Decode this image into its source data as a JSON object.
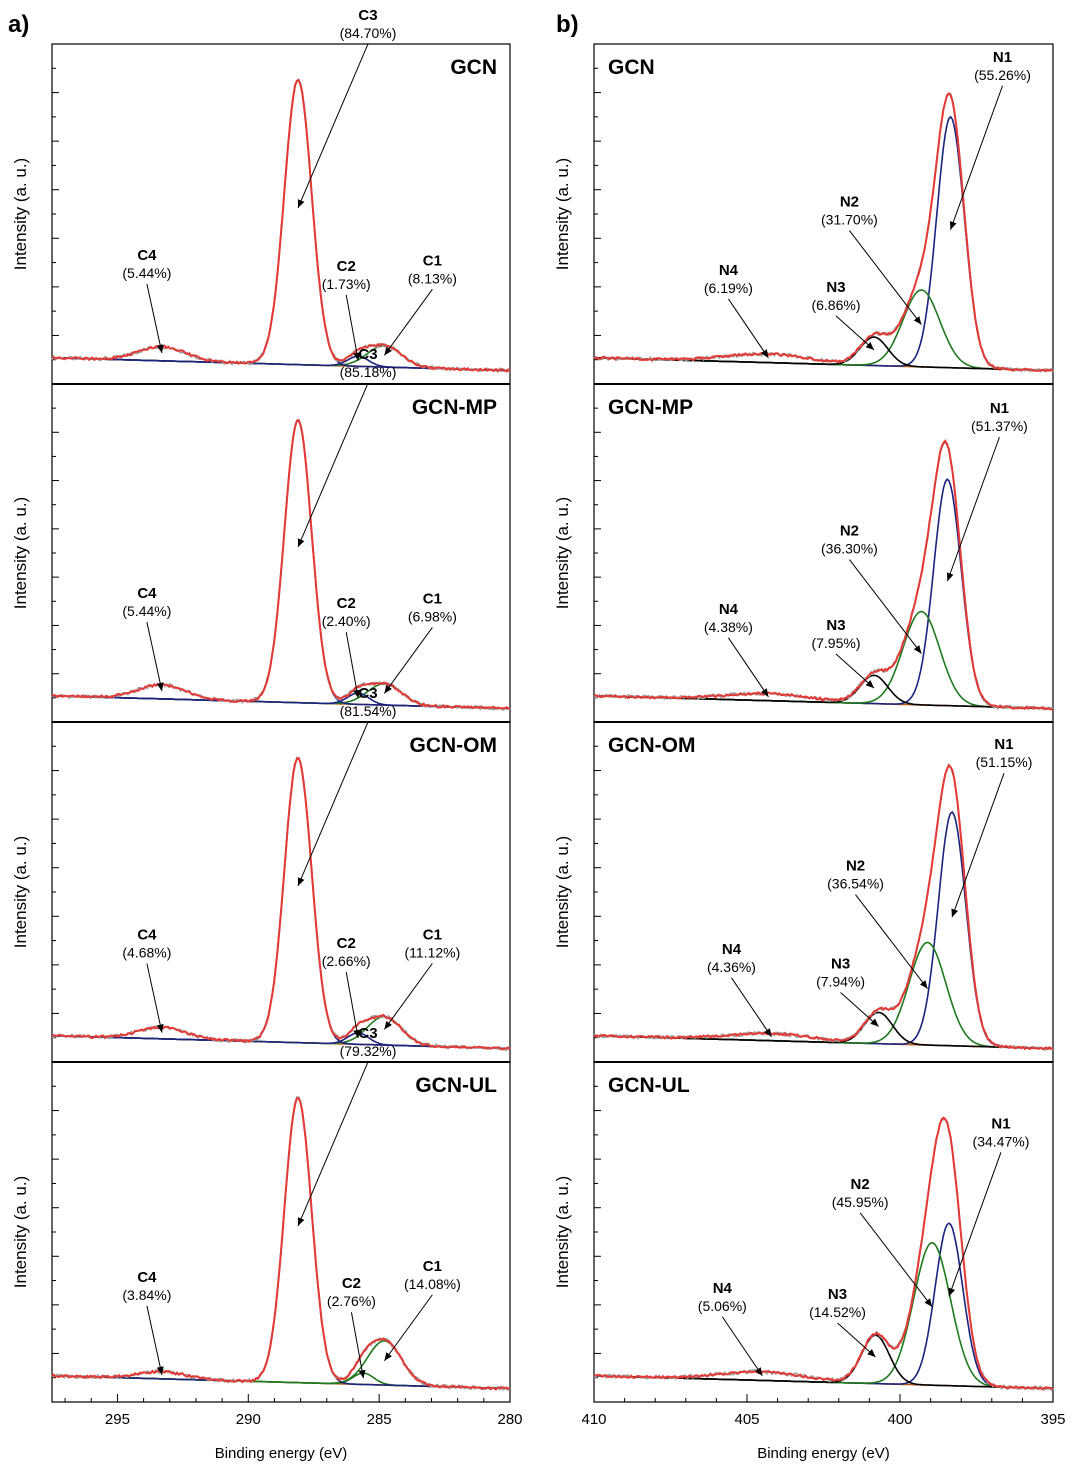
{
  "panels": [
    {
      "letter": "a)",
      "xlabel": "Binding energy (eV)",
      "ylabel": "Intensity (a. u.)",
      "xlim": [
        297.5,
        280
      ],
      "xticks": [
        295,
        290,
        285,
        280
      ],
      "subplots": [
        {
          "title": "GCN",
          "components": [
            {
              "name": "C1",
              "percent": "(8.13%)",
              "center": 284.8,
              "height": 0.075,
              "width": 0.65,
              "color": "#1f7a1f"
            },
            {
              "name": "C2",
              "percent": "(1.73%)",
              "center": 285.8,
              "height": 0.035,
              "width": 0.4,
              "color": "#1a237e"
            },
            {
              "name": "C3",
              "percent": "(84.70%)",
              "center": 288.1,
              "height": 1.0,
              "width": 0.52,
              "color": "#1a237e"
            },
            {
              "name": "C4",
              "percent": "(5.44%)",
              "center": 293.3,
              "height": 0.05,
              "width": 0.9,
              "color": "#8b4513"
            }
          ]
        },
        {
          "title": "GCN-MP",
          "components": [
            {
              "name": "C1",
              "percent": "(6.98%)",
              "center": 284.8,
              "height": 0.075,
              "width": 0.65,
              "color": "#1f7a1f"
            },
            {
              "name": "C2",
              "percent": "(2.40%)",
              "center": 285.8,
              "height": 0.04,
              "width": 0.4,
              "color": "#1a237e"
            },
            {
              "name": "C3",
              "percent": "(85.18%)",
              "center": 288.1,
              "height": 1.0,
              "width": 0.52,
              "color": "#1a237e"
            },
            {
              "name": "C4",
              "percent": "(5.44%)",
              "center": 293.3,
              "height": 0.05,
              "width": 0.9,
              "color": "#8b4513"
            }
          ]
        },
        {
          "title": "GCN-OM",
          "components": [
            {
              "name": "C1",
              "percent": "(11.12%)",
              "center": 284.8,
              "height": 0.1,
              "width": 0.65,
              "color": "#1f7a1f"
            },
            {
              "name": "C2",
              "percent": "(2.66%)",
              "center": 285.8,
              "height": 0.04,
              "width": 0.4,
              "color": "#1a237e"
            },
            {
              "name": "C3",
              "percent": "(81.54%)",
              "center": 288.1,
              "height": 1.0,
              "width": 0.52,
              "color": "#1a237e"
            },
            {
              "name": "C4",
              "percent": "(4.68%)",
              "center": 293.3,
              "height": 0.04,
              "width": 0.9,
              "color": "#8b4513"
            }
          ]
        },
        {
          "title": "GCN-UL",
          "components": [
            {
              "name": "C1",
              "percent": "(14.08%)",
              "center": 284.8,
              "height": 0.155,
              "width": 0.65,
              "color": "#1f7a1f"
            },
            {
              "name": "C2",
              "percent": "(2.76%)",
              "center": 285.6,
              "height": 0.04,
              "width": 0.4,
              "color": "#1f7a1f"
            },
            {
              "name": "C3",
              "percent": "(79.32%)",
              "center": 288.1,
              "height": 1.0,
              "width": 0.52,
              "color": "#1a237e"
            },
            {
              "name": "C4",
              "percent": "(3.84%)",
              "center": 293.3,
              "height": 0.025,
              "width": 0.9,
              "color": "#8b4513"
            }
          ]
        }
      ]
    },
    {
      "letter": "b)",
      "xlabel": "Binding energy (eV)",
      "ylabel": "Intensity (a. u.)",
      "xlim": [
        410,
        395
      ],
      "xticks": [
        410,
        405,
        400,
        395
      ],
      "subplots": [
        {
          "title": "GCN",
          "components": [
            {
              "name": "N1",
              "percent": "(55.26%)",
              "center": 398.35,
              "height": 0.88,
              "width": 0.45,
              "color": "#1a237e"
            },
            {
              "name": "N2",
              "percent": "(31.70%)",
              "center": 399.3,
              "height": 0.27,
              "width": 0.6,
              "color": "#1f7a1f"
            },
            {
              "name": "N3",
              "percent": "(6.86%)",
              "center": 400.85,
              "height": 0.1,
              "width": 0.45,
              "color": "#000000"
            },
            {
              "name": "N4",
              "percent": "(6.19%)",
              "center": 404.3,
              "height": 0.03,
              "width": 1.4,
              "color": "#8b4513"
            }
          ]
        },
        {
          "title": "GCN-MP",
          "components": [
            {
              "name": "N1",
              "percent": "(51.37%)",
              "center": 398.45,
              "height": 0.8,
              "width": 0.45,
              "color": "#1a237e"
            },
            {
              "name": "N2",
              "percent": "(36.30%)",
              "center": 399.3,
              "height": 0.33,
              "width": 0.6,
              "color": "#1f7a1f"
            },
            {
              "name": "N3",
              "percent": "(7.95%)",
              "center": 400.85,
              "height": 0.1,
              "width": 0.45,
              "color": "#000000"
            },
            {
              "name": "N4",
              "percent": "(4.38%)",
              "center": 404.3,
              "height": 0.025,
              "width": 1.4,
              "color": "#8b4513"
            }
          ]
        },
        {
          "title": "GCN-OM",
          "components": [
            {
              "name": "N1",
              "percent": "(51.15%)",
              "center": 398.3,
              "height": 0.82,
              "width": 0.45,
              "color": "#1a237e"
            },
            {
              "name": "N2",
              "percent": "(36.54%)",
              "center": 399.1,
              "height": 0.36,
              "width": 0.6,
              "color": "#1f7a1f"
            },
            {
              "name": "N3",
              "percent": "(7.94%)",
              "center": 400.7,
              "height": 0.11,
              "width": 0.45,
              "color": "#000000"
            },
            {
              "name": "N4",
              "percent": "(4.36%)",
              "center": 404.2,
              "height": 0.025,
              "width": 1.4,
              "color": "#8b4513"
            }
          ]
        },
        {
          "title": "GCN-UL",
          "components": [
            {
              "name": "N1",
              "percent": "(34.47%)",
              "center": 398.4,
              "height": 0.57,
              "width": 0.45,
              "color": "#1a237e"
            },
            {
              "name": "N2",
              "percent": "(45.95%)",
              "center": 398.95,
              "height": 0.5,
              "width": 0.6,
              "color": "#1f7a1f"
            },
            {
              "name": "N3",
              "percent": "(14.52%)",
              "center": 400.8,
              "height": 0.17,
              "width": 0.45,
              "color": "#000000"
            },
            {
              "name": "N4",
              "percent": "(5.06%)",
              "center": 404.5,
              "height": 0.03,
              "width": 1.4,
              "color": "#8b4513"
            }
          ]
        }
      ]
    }
  ],
  "chart_data": [
    {
      "type": "line",
      "title": "GCN",
      "xlabel": "Binding energy (eV)",
      "ylabel": "Intensity (a. u.)",
      "xlim": [
        297.5,
        280
      ],
      "series": [
        {
          "name": "C1",
          "x": [
            284.8
          ],
          "percent": 8.13
        },
        {
          "name": "C2",
          "x": [
            285.8
          ],
          "percent": 1.73
        },
        {
          "name": "C3",
          "x": [
            288.1
          ],
          "percent": 84.7
        },
        {
          "name": "C4",
          "x": [
            293.3
          ],
          "percent": 5.44
        }
      ]
    },
    {
      "type": "line",
      "title": "GCN-MP",
      "xlabel": "Binding energy (eV)",
      "ylabel": "Intensity (a. u.)",
      "xlim": [
        297.5,
        280
      ],
      "series": [
        {
          "name": "C1",
          "x": [
            284.8
          ],
          "percent": 6.98
        },
        {
          "name": "C2",
          "x": [
            285.8
          ],
          "percent": 2.4
        },
        {
          "name": "C3",
          "x": [
            288.1
          ],
          "percent": 85.18
        },
        {
          "name": "C4",
          "x": [
            293.3
          ],
          "percent": 5.44
        }
      ]
    },
    {
      "type": "line",
      "title": "GCN-OM",
      "xlabel": "Binding energy (eV)",
      "ylabel": "Intensity (a. u.)",
      "xlim": [
        297.5,
        280
      ],
      "series": [
        {
          "name": "C1",
          "x": [
            284.8
          ],
          "percent": 11.12
        },
        {
          "name": "C2",
          "x": [
            285.8
          ],
          "percent": 2.66
        },
        {
          "name": "C3",
          "x": [
            288.1
          ],
          "percent": 81.54
        },
        {
          "name": "C4",
          "x": [
            293.3
          ],
          "percent": 4.68
        }
      ]
    },
    {
      "type": "line",
      "title": "GCN-UL",
      "xlabel": "Binding energy (eV)",
      "ylabel": "Intensity (a. u.)",
      "xlim": [
        297.5,
        280
      ],
      "series": [
        {
          "name": "C1",
          "x": [
            284.8
          ],
          "percent": 14.08
        },
        {
          "name": "C2",
          "x": [
            285.6
          ],
          "percent": 2.76
        },
        {
          "name": "C3",
          "x": [
            288.1
          ],
          "percent": 79.32
        },
        {
          "name": "C4",
          "x": [
            293.3
          ],
          "percent": 3.84
        }
      ]
    },
    {
      "type": "line",
      "title": "GCN",
      "xlabel": "Binding energy (eV)",
      "ylabel": "Intensity (a. u.)",
      "xlim": [
        410,
        395
      ],
      "series": [
        {
          "name": "N1",
          "x": [
            398.35
          ],
          "percent": 55.26
        },
        {
          "name": "N2",
          "x": [
            399.3
          ],
          "percent": 31.7
        },
        {
          "name": "N3",
          "x": [
            400.85
          ],
          "percent": 6.86
        },
        {
          "name": "N4",
          "x": [
            404.3
          ],
          "percent": 6.19
        }
      ]
    },
    {
      "type": "line",
      "title": "GCN-MP",
      "xlabel": "Binding energy (eV)",
      "ylabel": "Intensity (a. u.)",
      "xlim": [
        410,
        395
      ],
      "series": [
        {
          "name": "N1",
          "x": [
            398.45
          ],
          "percent": 51.37
        },
        {
          "name": "N2",
          "x": [
            399.3
          ],
          "percent": 36.3
        },
        {
          "name": "N3",
          "x": [
            400.85
          ],
          "percent": 7.95
        },
        {
          "name": "N4",
          "x": [
            404.3
          ],
          "percent": 4.38
        }
      ]
    },
    {
      "type": "line",
      "title": "GCN-OM",
      "xlabel": "Binding energy (eV)",
      "ylabel": "Intensity (a. u.)",
      "xlim": [
        410,
        395
      ],
      "series": [
        {
          "name": "N1",
          "x": [
            398.3
          ],
          "percent": 51.15
        },
        {
          "name": "N2",
          "x": [
            399.1
          ],
          "percent": 36.54
        },
        {
          "name": "N3",
          "x": [
            400.7
          ],
          "percent": 7.94
        },
        {
          "name": "N4",
          "x": [
            404.2
          ],
          "percent": 4.36
        }
      ]
    },
    {
      "type": "line",
      "title": "GCN-UL",
      "xlabel": "Binding energy (eV)",
      "ylabel": "Intensity (a. u.)",
      "xlim": [
        410,
        395
      ],
      "series": [
        {
          "name": "N1",
          "x": [
            398.4
          ],
          "percent": 34.47
        },
        {
          "name": "N2",
          "x": [
            398.95
          ],
          "percent": 45.95
        },
        {
          "name": "N3",
          "x": [
            400.8
          ],
          "percent": 14.52
        },
        {
          "name": "N4",
          "x": [
            404.5
          ],
          "percent": 5.06
        }
      ]
    }
  ]
}
